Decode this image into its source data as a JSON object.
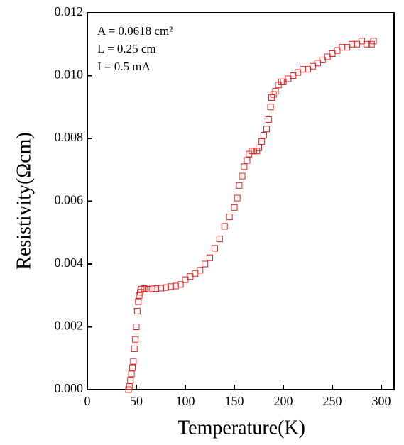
{
  "chart_data": {
    "type": "scatter",
    "x_label": "Temperature(K)",
    "y_label": "Resistivity(Ωcm)",
    "annotations": [
      "A = 0.0618 cm²",
      "L = 0.25 cm",
      "I =  0.5 mA"
    ],
    "series": [
      {
        "color": "#e02020",
        "x": [
          42,
          43,
          44,
          45,
          46,
          47,
          48,
          49,
          50,
          51,
          52,
          53,
          54,
          55,
          58,
          62,
          66,
          70,
          75,
          80,
          85,
          90,
          95,
          100,
          105,
          110,
          115,
          120,
          125,
          130,
          135,
          140,
          145,
          150,
          153,
          155,
          158,
          160,
          163,
          165,
          168,
          170,
          173,
          175,
          178,
          180,
          183,
          185,
          187,
          188,
          190,
          192,
          195,
          198,
          200,
          205,
          210,
          215,
          220,
          225,
          230,
          235,
          240,
          245,
          250,
          255,
          260,
          265,
          270,
          275,
          280,
          285,
          290,
          292
        ],
        "values": [
          0,
          0.0001,
          0.0003,
          0.0005,
          0.0007,
          0.0009,
          0.0013,
          0.0016,
          0.002,
          0.0025,
          0.0028,
          0.003,
          0.0031,
          0.0032,
          0.00322,
          0.0032,
          0.00321,
          0.00322,
          0.00323,
          0.00325,
          0.00328,
          0.0033,
          0.00335,
          0.0035,
          0.0036,
          0.0037,
          0.0038,
          0.004,
          0.0042,
          0.0045,
          0.0048,
          0.0052,
          0.0055,
          0.0058,
          0.0061,
          0.0065,
          0.0068,
          0.0071,
          0.0073,
          0.0075,
          0.0076,
          0.0076,
          0.0076,
          0.0077,
          0.0079,
          0.0081,
          0.0083,
          0.0086,
          0.009,
          0.0093,
          0.0094,
          0.0095,
          0.0097,
          0.0098,
          0.0098,
          0.0099,
          0.01,
          0.0101,
          0.0102,
          0.0102,
          0.0103,
          0.0104,
          0.0105,
          0.0106,
          0.0107,
          0.0108,
          0.0109,
          0.0109,
          0.011,
          0.011,
          0.0111,
          0.011,
          0.011,
          0.0111
        ]
      }
    ],
    "xlim": [
      0,
      313
    ],
    "xticks": [
      0,
      50,
      100,
      150,
      200,
      250,
      300
    ],
    "ylim": [
      0,
      0.012
    ],
    "yticks": [
      {
        "value": 0,
        "label": "0.000"
      },
      0.002,
      0.004,
      0.006,
      0.008,
      {
        "value": 0.01,
        "label": "0.010"
      },
      {
        "value": 0.012,
        "label": "0.012"
      }
    ]
  }
}
